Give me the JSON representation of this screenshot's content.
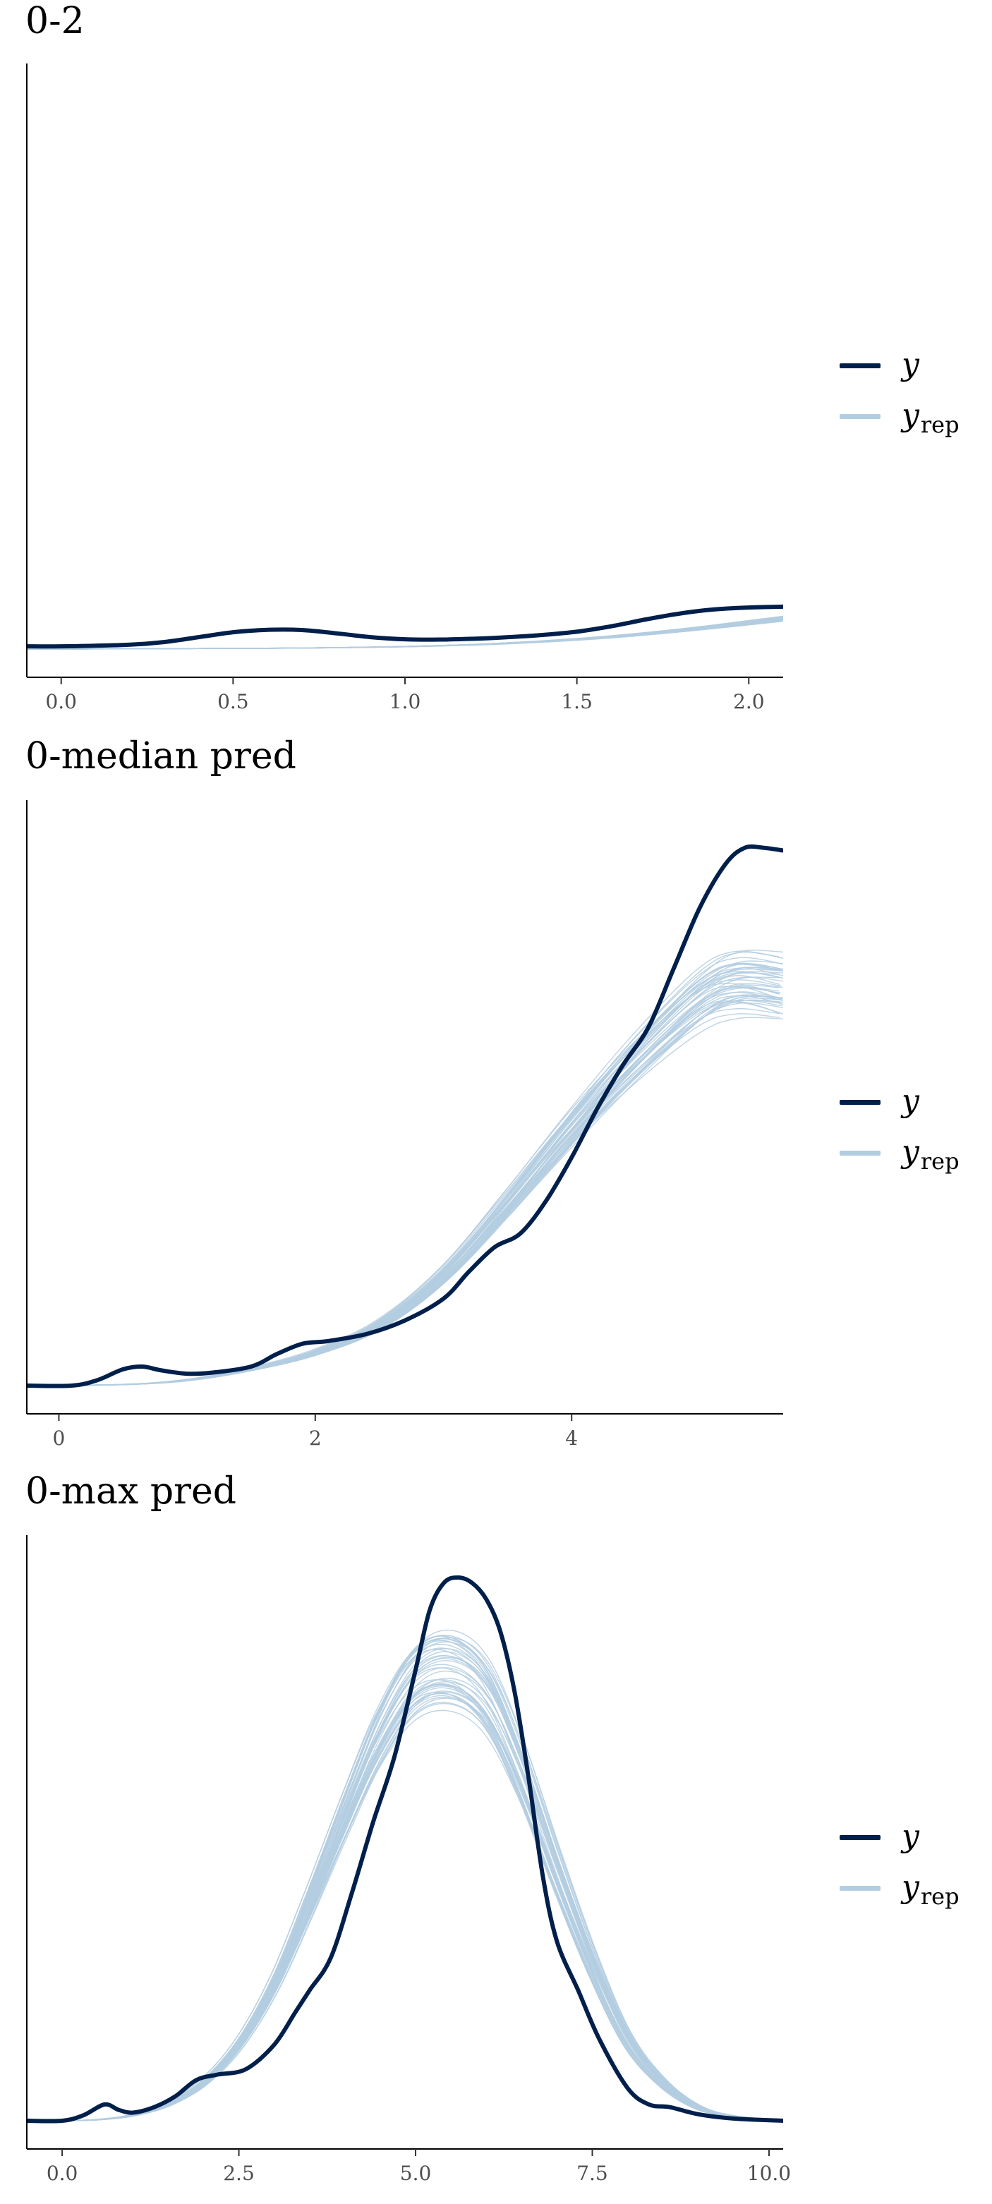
{
  "chart_data": [
    {
      "type": "line",
      "title": "0-2",
      "xlim": [
        -0.1,
        2.1
      ],
      "x_ticks": [
        0.0,
        0.5,
        1.0,
        1.5,
        2.0
      ],
      "x_tick_labels": [
        "0.0",
        "0.5",
        "1.0",
        "1.5",
        "2.0"
      ],
      "y_ticks_shown": false,
      "ylim": [
        0,
        0.2
      ],
      "legend": {
        "position": "right",
        "entries": [
          {
            "label": "y",
            "sub": "",
            "color": "#011f4b"
          },
          {
            "label": "y",
            "sub": "rep",
            "color": "#b3cde0"
          }
        ]
      },
      "series": [
        {
          "name": "y",
          "color": "#011f4b",
          "x": [
            -0.1,
            0.0,
            0.2,
            0.3,
            0.4,
            0.5,
            0.6,
            0.7,
            0.8,
            0.9,
            1.0,
            1.1,
            1.2,
            1.3,
            1.4,
            1.5,
            1.6,
            1.7,
            1.8,
            1.9,
            2.0,
            2.1
          ],
          "y": [
            0.001,
            0.001,
            0.0016,
            0.0026,
            0.0044,
            0.0062,
            0.0071,
            0.007,
            0.0058,
            0.0044,
            0.0036,
            0.0035,
            0.0038,
            0.0044,
            0.0052,
            0.0064,
            0.0084,
            0.0109,
            0.0131,
            0.0146,
            0.0153,
            0.0156
          ]
        },
        {
          "name": "yrep",
          "color": "#b3cde0",
          "replicates": 45,
          "x": [
            -0.1,
            0.0,
            0.2,
            0.4,
            0.6,
            0.8,
            1.0,
            1.2,
            1.4,
            1.6,
            1.8,
            2.0,
            2.1
          ],
          "y": [
            0.0,
            0.0,
            0.0001,
            0.0002,
            0.0003,
            0.0005,
            0.0009,
            0.0016,
            0.0028,
            0.0045,
            0.0068,
            0.0096,
            0.0111
          ]
        }
      ]
    },
    {
      "type": "line",
      "title": "0-median pred",
      "xlim": [
        -0.25,
        5.65
      ],
      "x_ticks": [
        0,
        2,
        4
      ],
      "x_tick_labels": [
        "0",
        "2",
        "4"
      ],
      "y_ticks_shown": false,
      "ylim": [
        0,
        1.0
      ],
      "legend": {
        "position": "right",
        "entries": [
          {
            "label": "y",
            "sub": "",
            "color": "#011f4b"
          },
          {
            "label": "y",
            "sub": "rep",
            "color": "#b3cde0"
          }
        ]
      },
      "series": [
        {
          "name": "y",
          "color": "#011f4b",
          "x": [
            -0.25,
            0.1,
            0.3,
            0.5,
            0.65,
            0.8,
            1.0,
            1.2,
            1.5,
            1.7,
            1.9,
            2.1,
            2.4,
            2.7,
            3.0,
            3.2,
            3.4,
            3.6,
            3.8,
            4.0,
            4.2,
            4.4,
            4.6,
            4.8,
            5.0,
            5.2,
            5.35,
            5.5,
            5.65
          ],
          "y": [
            0.0,
            0.0,
            0.01,
            0.03,
            0.035,
            0.028,
            0.022,
            0.024,
            0.035,
            0.058,
            0.077,
            0.082,
            0.095,
            0.12,
            0.16,
            0.21,
            0.255,
            0.28,
            0.34,
            0.42,
            0.51,
            0.59,
            0.66,
            0.77,
            0.88,
            0.96,
            0.99,
            0.99,
            0.985
          ]
        },
        {
          "name": "yrep",
          "color": "#b3cde0",
          "replicates": 45,
          "x": [
            -0.25,
            0.5,
            1.0,
            1.5,
            2.0,
            2.5,
            3.0,
            3.5,
            4.0,
            4.5,
            5.0,
            5.3,
            5.65
          ],
          "y": [
            0.0,
            0.002,
            0.01,
            0.03,
            0.06,
            0.11,
            0.2,
            0.33,
            0.47,
            0.6,
            0.71,
            0.74,
            0.73
          ]
        }
      ]
    },
    {
      "type": "line",
      "title": "0-max pred",
      "xlim": [
        -0.5,
        10.2
      ],
      "x_ticks": [
        0.0,
        2.5,
        5.0,
        7.5,
        10.0
      ],
      "x_tick_labels": [
        "0.0",
        "2.5",
        "5.0",
        "7.5",
        "10.0"
      ],
      "y_ticks_shown": false,
      "ylim": [
        0,
        1.0
      ],
      "legend": {
        "position": "right",
        "entries": [
          {
            "label": "y",
            "sub": "",
            "color": "#011f4b"
          },
          {
            "label": "y",
            "sub": "rep",
            "color": "#b3cde0"
          }
        ]
      },
      "series": [
        {
          "name": "y",
          "color": "#011f4b",
          "x": [
            -0.5,
            0.0,
            0.3,
            0.6,
            0.8,
            1.0,
            1.3,
            1.6,
            1.9,
            2.2,
            2.6,
            3.0,
            3.3,
            3.5,
            3.8,
            4.1,
            4.4,
            4.7,
            5.0,
            5.2,
            5.4,
            5.6,
            5.8,
            6.0,
            6.2,
            6.4,
            6.6,
            6.8,
            7.0,
            7.3,
            7.6,
            8.0,
            8.3,
            8.6,
            9.0,
            9.5,
            10.2
          ],
          "y": [
            0.0,
            0.0,
            0.01,
            0.03,
            0.02,
            0.015,
            0.025,
            0.045,
            0.075,
            0.085,
            0.095,
            0.14,
            0.2,
            0.24,
            0.3,
            0.42,
            0.55,
            0.67,
            0.83,
            0.94,
            0.99,
            1.0,
            0.99,
            0.96,
            0.9,
            0.79,
            0.63,
            0.45,
            0.33,
            0.24,
            0.15,
            0.06,
            0.03,
            0.025,
            0.012,
            0.004,
            0.0
          ]
        },
        {
          "name": "yrep",
          "color": "#b3cde0",
          "replicates": 45,
          "x": [
            -0.5,
            0.0,
            0.5,
            1.0,
            1.5,
            2.0,
            2.5,
            3.0,
            3.5,
            4.0,
            4.5,
            5.0,
            5.5,
            6.0,
            6.5,
            7.0,
            7.5,
            8.0,
            8.5,
            9.0,
            9.5,
            10.2
          ],
          "y": [
            0.0,
            0.0,
            0.002,
            0.01,
            0.03,
            0.07,
            0.14,
            0.25,
            0.4,
            0.56,
            0.71,
            0.81,
            0.83,
            0.78,
            0.64,
            0.46,
            0.29,
            0.15,
            0.07,
            0.025,
            0.008,
            0.001
          ]
        }
      ]
    }
  ]
}
